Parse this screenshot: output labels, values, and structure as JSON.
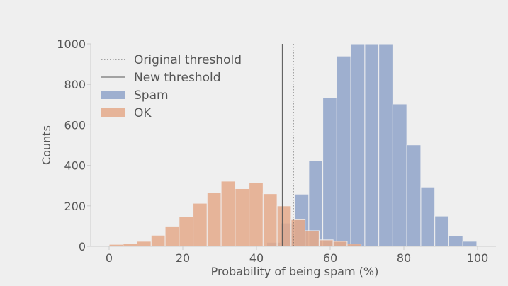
{
  "chart_data": {
    "type": "bar",
    "title": "",
    "xlabel": "Probability of being spam (%)",
    "ylabel": "Counts",
    "xlim": [
      -5,
      105
    ],
    "ylim": [
      0,
      1000
    ],
    "x_ticks": [
      0,
      20,
      40,
      60,
      80,
      100
    ],
    "y_ticks": [
      0,
      200,
      400,
      600,
      800,
      1000
    ],
    "grid": false,
    "legend_placement": "top-left",
    "bin_width": 3.8,
    "series": [
      {
        "name": "Spam",
        "color": "#8fa3c9",
        "bins": [
          {
            "x": 39.0,
            "count": 1
          },
          {
            "x": 42.8,
            "count": 20
          },
          {
            "x": 46.6,
            "count": 115
          },
          {
            "x": 50.4,
            "count": 258
          },
          {
            "x": 54.2,
            "count": 422
          },
          {
            "x": 58.0,
            "count": 733
          },
          {
            "x": 61.8,
            "count": 940
          },
          {
            "x": 65.6,
            "count": 1000
          },
          {
            "x": 69.4,
            "count": 1000
          },
          {
            "x": 73.2,
            "count": 1000
          },
          {
            "x": 77.0,
            "count": 703
          },
          {
            "x": 80.8,
            "count": 501
          },
          {
            "x": 84.6,
            "count": 293
          },
          {
            "x": 88.4,
            "count": 150
          },
          {
            "x": 92.2,
            "count": 52
          },
          {
            "x": 96.0,
            "count": 25
          }
        ]
      },
      {
        "name": "OK",
        "color": "#e4a98a",
        "bins": [
          {
            "x": 0.0,
            "count": 10
          },
          {
            "x": 3.8,
            "count": 13
          },
          {
            "x": 7.6,
            "count": 25
          },
          {
            "x": 11.4,
            "count": 55
          },
          {
            "x": 15.2,
            "count": 100
          },
          {
            "x": 19.0,
            "count": 148
          },
          {
            "x": 22.8,
            "count": 213
          },
          {
            "x": 26.6,
            "count": 265
          },
          {
            "x": 30.4,
            "count": 322
          },
          {
            "x": 34.2,
            "count": 285
          },
          {
            "x": 38.0,
            "count": 313
          },
          {
            "x": 41.8,
            "count": 260
          },
          {
            "x": 45.6,
            "count": 200
          },
          {
            "x": 49.4,
            "count": 132
          },
          {
            "x": 53.2,
            "count": 77
          },
          {
            "x": 57.0,
            "count": 32
          },
          {
            "x": 60.8,
            "count": 25
          },
          {
            "x": 64.6,
            "count": 12
          }
        ]
      }
    ],
    "thresholds": [
      {
        "name": "Original threshold",
        "x": 50,
        "style": "dotted"
      },
      {
        "name": "New threshold",
        "x": 47,
        "style": "solid"
      }
    ]
  }
}
